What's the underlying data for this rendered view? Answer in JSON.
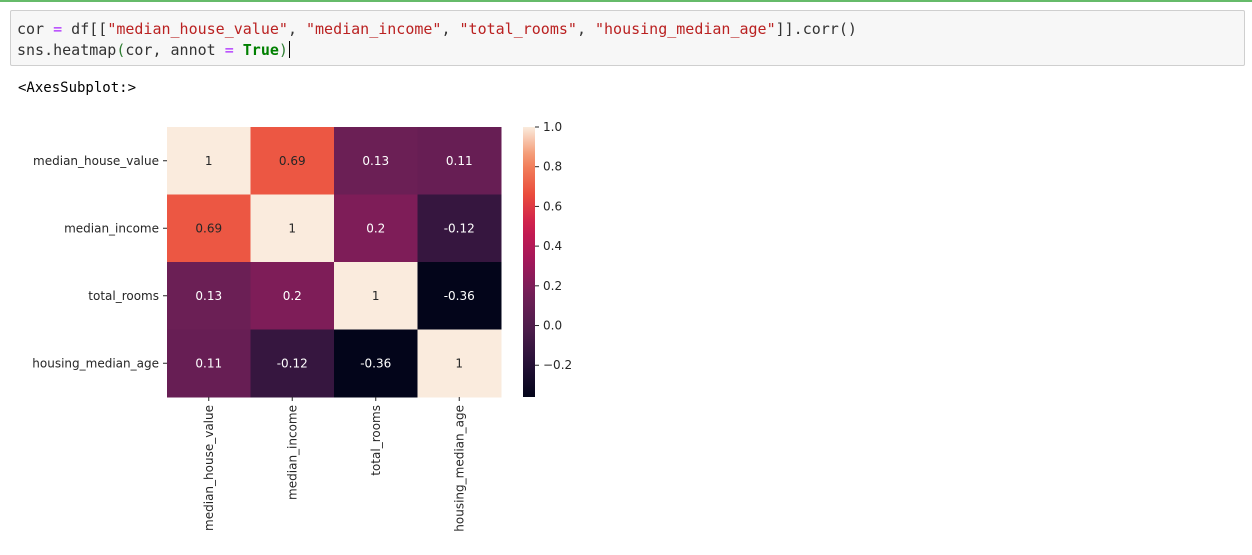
{
  "code_cell": {
    "line1_parts": [
      {
        "t": "cor ",
        "c": ""
      },
      {
        "t": "=",
        "c": "op"
      },
      {
        "t": " df[[",
        "c": ""
      },
      {
        "t": "\"median_house_value\"",
        "c": "str"
      },
      {
        "t": ", ",
        "c": ""
      },
      {
        "t": "\"median_income\"",
        "c": "str"
      },
      {
        "t": ", ",
        "c": ""
      },
      {
        "t": "\"total_rooms\"",
        "c": "str"
      },
      {
        "t": ", ",
        "c": ""
      },
      {
        "t": "\"housing_median_age\"",
        "c": "str"
      },
      {
        "t": "]].corr()",
        "c": ""
      }
    ],
    "line2_parts": [
      {
        "t": "sns.heatmap",
        "c": ""
      },
      {
        "t": "(",
        "c": "paren-hl"
      },
      {
        "t": "cor, annot ",
        "c": ""
      },
      {
        "t": "=",
        "c": "op"
      },
      {
        "t": " ",
        "c": ""
      },
      {
        "t": "True",
        "c": "kw"
      },
      {
        "t": ")",
        "c": "paren-hl"
      }
    ]
  },
  "output": {
    "text": "<AxesSubplot:>"
  },
  "chart_data": {
    "type": "heatmap",
    "title": "",
    "row_labels": [
      "median_house_value",
      "median_income",
      "total_rooms",
      "housing_median_age"
    ],
    "col_labels": [
      "median_house_value",
      "median_income",
      "total_rooms",
      "housing_median_age"
    ],
    "values": [
      [
        1,
        0.69,
        0.13,
        0.11
      ],
      [
        0.69,
        1,
        0.2,
        -0.12
      ],
      [
        0.13,
        0.2,
        1,
        -0.36
      ],
      [
        0.11,
        -0.12,
        -0.36,
        1
      ]
    ],
    "annotations": [
      [
        "1",
        "0.69",
        "0.13",
        "0.11"
      ],
      [
        "0.69",
        "1",
        "0.2",
        "-0.12"
      ],
      [
        "0.13",
        "0.2",
        "1",
        "-0.36"
      ],
      [
        "0.11",
        "-0.12",
        "-0.36",
        "1"
      ]
    ],
    "colormap": "rocket",
    "vmin": -0.36,
    "vmax": 1.0,
    "colorbar_ticks": [
      1.0,
      0.8,
      0.6,
      0.4,
      0.2,
      0.0,
      -0.2
    ],
    "colorbar_tick_labels": [
      "1.0",
      "0.8",
      "0.6",
      "0.4",
      "0.2",
      "0.0",
      "−0.2"
    ],
    "colorbar_position": "right"
  }
}
